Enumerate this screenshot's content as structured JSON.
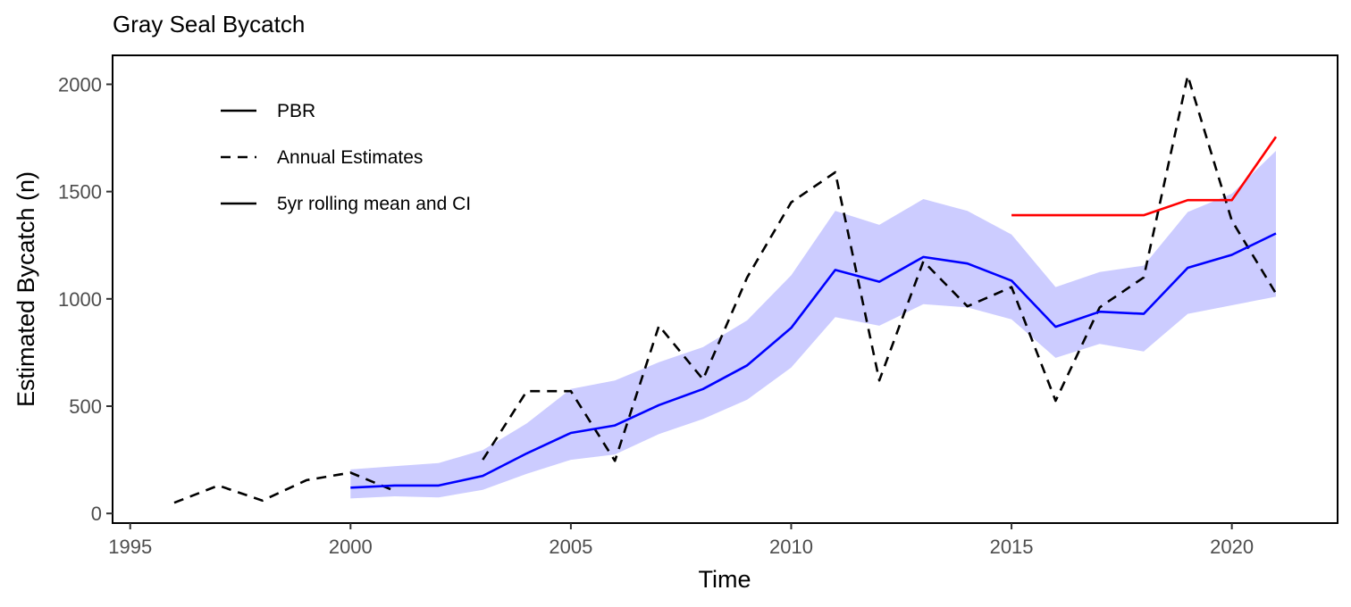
{
  "chart_data": {
    "type": "line",
    "title": "Gray Seal Bycatch",
    "xlabel": "Time",
    "ylabel": "Estimated Bycatch (n)",
    "xlim": [
      1994.6,
      2022.4
    ],
    "ylim": [
      -45,
      2135
    ],
    "x_ticks": [
      1995,
      2000,
      2005,
      2010,
      2015,
      2020
    ],
    "y_ticks": [
      0,
      500,
      1000,
      1500,
      2000
    ],
    "grid": false,
    "legend_position": "top-left",
    "legend": [
      {
        "label": "PBR",
        "style": "solid"
      },
      {
        "label": "Annual Estimates",
        "style": "dashed"
      },
      {
        "label": "5yr rolling mean and CI",
        "style": "solid"
      }
    ],
    "series": [
      {
        "name": "Annual Estimates",
        "style": "dashed",
        "color": "#000000",
        "x": [
          1996,
          1997,
          1998,
          1999,
          2000,
          2001,
          2002,
          2003,
          2004,
          2005,
          2006,
          2007,
          2008,
          2009,
          2010,
          2011,
          2012,
          2013,
          2014,
          2015,
          2016,
          2017,
          2018,
          2019,
          2020,
          2021
        ],
        "y": [
          50,
          130,
          60,
          155,
          190,
          105,
          null,
          250,
          570,
          570,
          245,
          875,
          625,
          1100,
          1450,
          1590,
          620,
          1175,
          965,
          1055,
          525,
          960,
          1100,
          2040,
          1365,
          1025
        ]
      },
      {
        "name": "5yr rolling mean and CI",
        "style": "solid",
        "color": "#0000ff",
        "x": [
          2000,
          2001,
          2002,
          2003,
          2004,
          2005,
          2006,
          2007,
          2008,
          2009,
          2010,
          2011,
          2012,
          2013,
          2014,
          2015,
          2016,
          2017,
          2018,
          2019,
          2020,
          2021
        ],
        "y": [
          120,
          130,
          130,
          175,
          280,
          375,
          410,
          505,
          580,
          690,
          865,
          1135,
          1080,
          1195,
          1165,
          1085,
          870,
          940,
          930,
          1145,
          1205,
          1305
        ],
        "ci_lower": [
          70,
          80,
          75,
          110,
          185,
          250,
          275,
          370,
          440,
          530,
          680,
          915,
          875,
          975,
          960,
          905,
          725,
          790,
          755,
          930,
          970,
          1010
        ],
        "ci_upper": [
          205,
          220,
          235,
          295,
          420,
          580,
          620,
          705,
          775,
          900,
          1110,
          1410,
          1345,
          1465,
          1410,
          1300,
          1055,
          1125,
          1155,
          1405,
          1490,
          1690
        ],
        "ci_color": "#ccccff"
      },
      {
        "name": "PBR",
        "style": "solid",
        "color": "#ff0000",
        "x": [
          2015,
          2016,
          2017,
          2018,
          2019,
          2020,
          2021
        ],
        "y": [
          1390,
          1390,
          1390,
          1390,
          1460,
          1460,
          1755
        ]
      }
    ]
  }
}
